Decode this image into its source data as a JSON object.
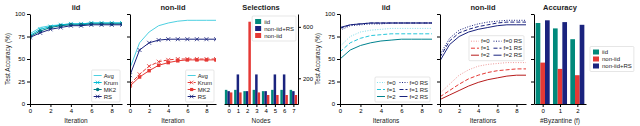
{
  "chart_data": [
    {
      "type": "line",
      "title": "iid",
      "x": [
        0,
        1,
        2,
        3,
        4,
        5,
        6,
        7,
        8,
        9
      ],
      "xlim": [
        0,
        9
      ],
      "xticks": [
        0,
        2,
        4,
        6,
        8
      ],
      "ylim": [
        0,
        100
      ],
      "yticks": [
        0,
        25,
        50,
        75,
        100
      ],
      "x_label": "Iteration",
      "y_label": "Test Accuracy (%)",
      "legend": "lower right",
      "grid": false,
      "series": [
        {
          "name": "Avg",
          "color": "#4dd0e1",
          "line_style": "solid",
          "values": [
            78,
            85,
            87,
            88,
            89,
            89,
            90,
            90,
            90,
            90
          ]
        },
        {
          "name": "Krum",
          "color": "#00bcd4",
          "line_style": "solid",
          "marker": "x",
          "values": [
            76,
            83,
            86,
            88,
            89,
            89,
            90,
            90,
            90,
            90
          ]
        },
        {
          "name": "MK2",
          "color": "#007b83",
          "line_style": "solid",
          "marker": "o",
          "values": [
            75,
            81,
            85,
            87,
            88,
            88,
            89,
            89,
            89,
            89
          ]
        },
        {
          "name": "RS",
          "color": "#1a237e",
          "line_style": "solid",
          "marker": "x",
          "values": [
            74,
            79,
            83,
            85,
            87,
            87,
            88,
            88,
            88,
            88
          ]
        }
      ]
    },
    {
      "type": "line",
      "title": "non-iid",
      "x": [
        0,
        1,
        2,
        3,
        4,
        5,
        6,
        7,
        8,
        9
      ],
      "xlim": [
        0,
        9
      ],
      "xticks": [
        0,
        2,
        4,
        6,
        8
      ],
      "ylim": [
        0,
        100
      ],
      "yticks": [
        0,
        25,
        50,
        75,
        100
      ],
      "tick_labels": "x",
      "x_label": "Iteration",
      "legend": "lower right",
      "grid": false,
      "series": [
        {
          "name": "Avg",
          "color": "#4dd0e1",
          "line_style": "solid",
          "values": [
            40,
            68,
            80,
            87,
            90,
            92,
            93,
            93,
            93,
            93
          ]
        },
        {
          "name": "Krum",
          "color": "#e53935",
          "line_style": "dashed",
          "marker": "x",
          "values": [
            22,
            33,
            42,
            47,
            49,
            50,
            50,
            50,
            50,
            50
          ]
        },
        {
          "name": "MK2",
          "color": "#e53935",
          "line_style": "solid",
          "marker": "s",
          "values": [
            20,
            30,
            37,
            43,
            46,
            48,
            49,
            49,
            49,
            49
          ]
        },
        {
          "name": "RS",
          "color": "#1a237e",
          "line_style": "solid",
          "marker": "x",
          "values": [
            32,
            60,
            68,
            71,
            72,
            72,
            72,
            72,
            72,
            72
          ]
        }
      ]
    },
    {
      "type": "bar",
      "title": "Selections",
      "x": [
        0,
        1,
        2,
        3,
        4,
        5,
        6,
        7
      ],
      "xlim": [
        -0.5,
        7.5
      ],
      "xticks": [
        0,
        1,
        2,
        3,
        4,
        5,
        6,
        7
      ],
      "ylim": [
        0,
        700
      ],
      "yticks": [
        200,
        600
      ],
      "x_label": "Nodes",
      "legend": "upper right",
      "grid": false,
      "series": [
        {
          "name": "iid",
          "color": "#00897b",
          "values": [
            110,
            110,
            100,
            110,
            100,
            110,
            110,
            110
          ]
        },
        {
          "name": "non-iid+RS",
          "color": "#1a237e",
          "values": [
            100,
            230,
            100,
            230,
            100,
            230,
            230,
            100
          ]
        },
        {
          "name": "non-iid",
          "color": "#e53935",
          "values": [
            90,
            90,
            640,
            90,
            70,
            70,
            70,
            70
          ]
        }
      ]
    },
    {
      "type": "line",
      "title": "iid",
      "x": [
        0,
        1,
        2,
        3,
        4,
        5,
        6,
        7,
        8,
        9
      ],
      "xlim": [
        0,
        9
      ],
      "xticks": [
        0,
        2,
        4,
        6,
        8
      ],
      "ylim": [
        0,
        100
      ],
      "yticks": [
        0,
        25,
        50,
        75,
        100
      ],
      "x_label": "Iterations",
      "y_label": "Test Accuracy (%)",
      "legend": "lower right",
      "grid": false,
      "series": [
        {
          "name": "f=0",
          "color": "#80deea",
          "line_style": "dotted",
          "values": [
            64,
            75,
            80,
            82,
            83,
            84,
            84,
            84,
            84,
            84
          ]
        },
        {
          "name": "f=1",
          "color": "#26c6da",
          "line_style": "dashed",
          "values": [
            58,
            68,
            73,
            76,
            77,
            78,
            78,
            78,
            78,
            78
          ]
        },
        {
          "name": "f=2",
          "color": "#00838f",
          "line_style": "solid",
          "values": [
            50,
            60,
            65,
            68,
            70,
            71,
            72,
            72,
            72,
            72
          ]
        },
        {
          "name": "f=0 RS",
          "color": "#1a237e",
          "line_style": "dotted",
          "values": [
            82,
            87,
            88,
            89,
            89,
            90,
            90,
            90,
            90,
            90
          ]
        },
        {
          "name": "f=1 RS",
          "color": "#1a237e",
          "line_style": "dashed",
          "values": [
            84,
            88,
            89,
            90,
            90,
            90,
            90,
            90,
            90,
            90
          ]
        },
        {
          "name": "f=2 RS",
          "color": "#1a237e",
          "line_style": "solid",
          "values": [
            85,
            88,
            89,
            90,
            90,
            90,
            90,
            90,
            90,
            90
          ]
        }
      ]
    },
    {
      "type": "line",
      "title": "non-iid",
      "x": [
        0,
        1,
        2,
        3,
        4,
        5,
        6,
        7,
        8,
        9
      ],
      "xlim": [
        0,
        9
      ],
      "xticks": [
        0,
        2,
        4,
        6,
        8
      ],
      "ylim": [
        0,
        100
      ],
      "yticks": [
        0,
        25,
        50,
        75,
        100
      ],
      "tick_labels": "x",
      "x_label": "Iterations",
      "legend": "center right",
      "grid": false,
      "series": [
        {
          "name": "f=0",
          "color": "#ef9a9a",
          "line_style": "dotted",
          "values": [
            12,
            22,
            32,
            38,
            42,
            44,
            45,
            46,
            46,
            46
          ]
        },
        {
          "name": "f=1",
          "color": "#e53935",
          "line_style": "dashed",
          "values": [
            8,
            15,
            22,
            28,
            32,
            35,
            37,
            38,
            39,
            39
          ]
        },
        {
          "name": "f=2",
          "color": "#b71c1c",
          "line_style": "solid",
          "values": [
            5,
            10,
            15,
            20,
            24,
            27,
            29,
            31,
            32,
            32
          ]
        },
        {
          "name": "f=0 RS",
          "color": "#1a237e",
          "line_style": "dotted",
          "values": [
            55,
            73,
            82,
            86,
            89,
            91,
            92,
            93,
            93,
            93
          ]
        },
        {
          "name": "f=1 RS",
          "color": "#1a237e",
          "line_style": "dashed",
          "values": [
            52,
            70,
            79,
            83,
            86,
            88,
            90,
            91,
            91,
            91
          ]
        },
        {
          "name": "f=2 RS",
          "color": "#1a237e",
          "line_style": "solid",
          "values": [
            48,
            66,
            75,
            80,
            83,
            85,
            87,
            88,
            88,
            88
          ]
        }
      ]
    },
    {
      "type": "bar",
      "title": "Accuracy",
      "x": [
        0,
        1,
        2
      ],
      "xlim": [
        -0.5,
        2.5
      ],
      "xticks": [
        0,
        1,
        2
      ],
      "ylim": [
        0,
        100
      ],
      "yticks": [
        0,
        25,
        50,
        75,
        100
      ],
      "tick_labels": "x",
      "x_label": "#Byzantine (f)",
      "legend": "right",
      "grid": false,
      "series": [
        {
          "name": "iid",
          "color": "#00897b",
          "values": [
            90,
            84,
            72
          ]
        },
        {
          "name": "non-iid",
          "color": "#e53935",
          "values": [
            46,
            39,
            32
          ]
        },
        {
          "name": "non-iid+RS",
          "color": "#1a237e",
          "values": [
            93,
            91,
            88
          ]
        }
      ]
    }
  ]
}
